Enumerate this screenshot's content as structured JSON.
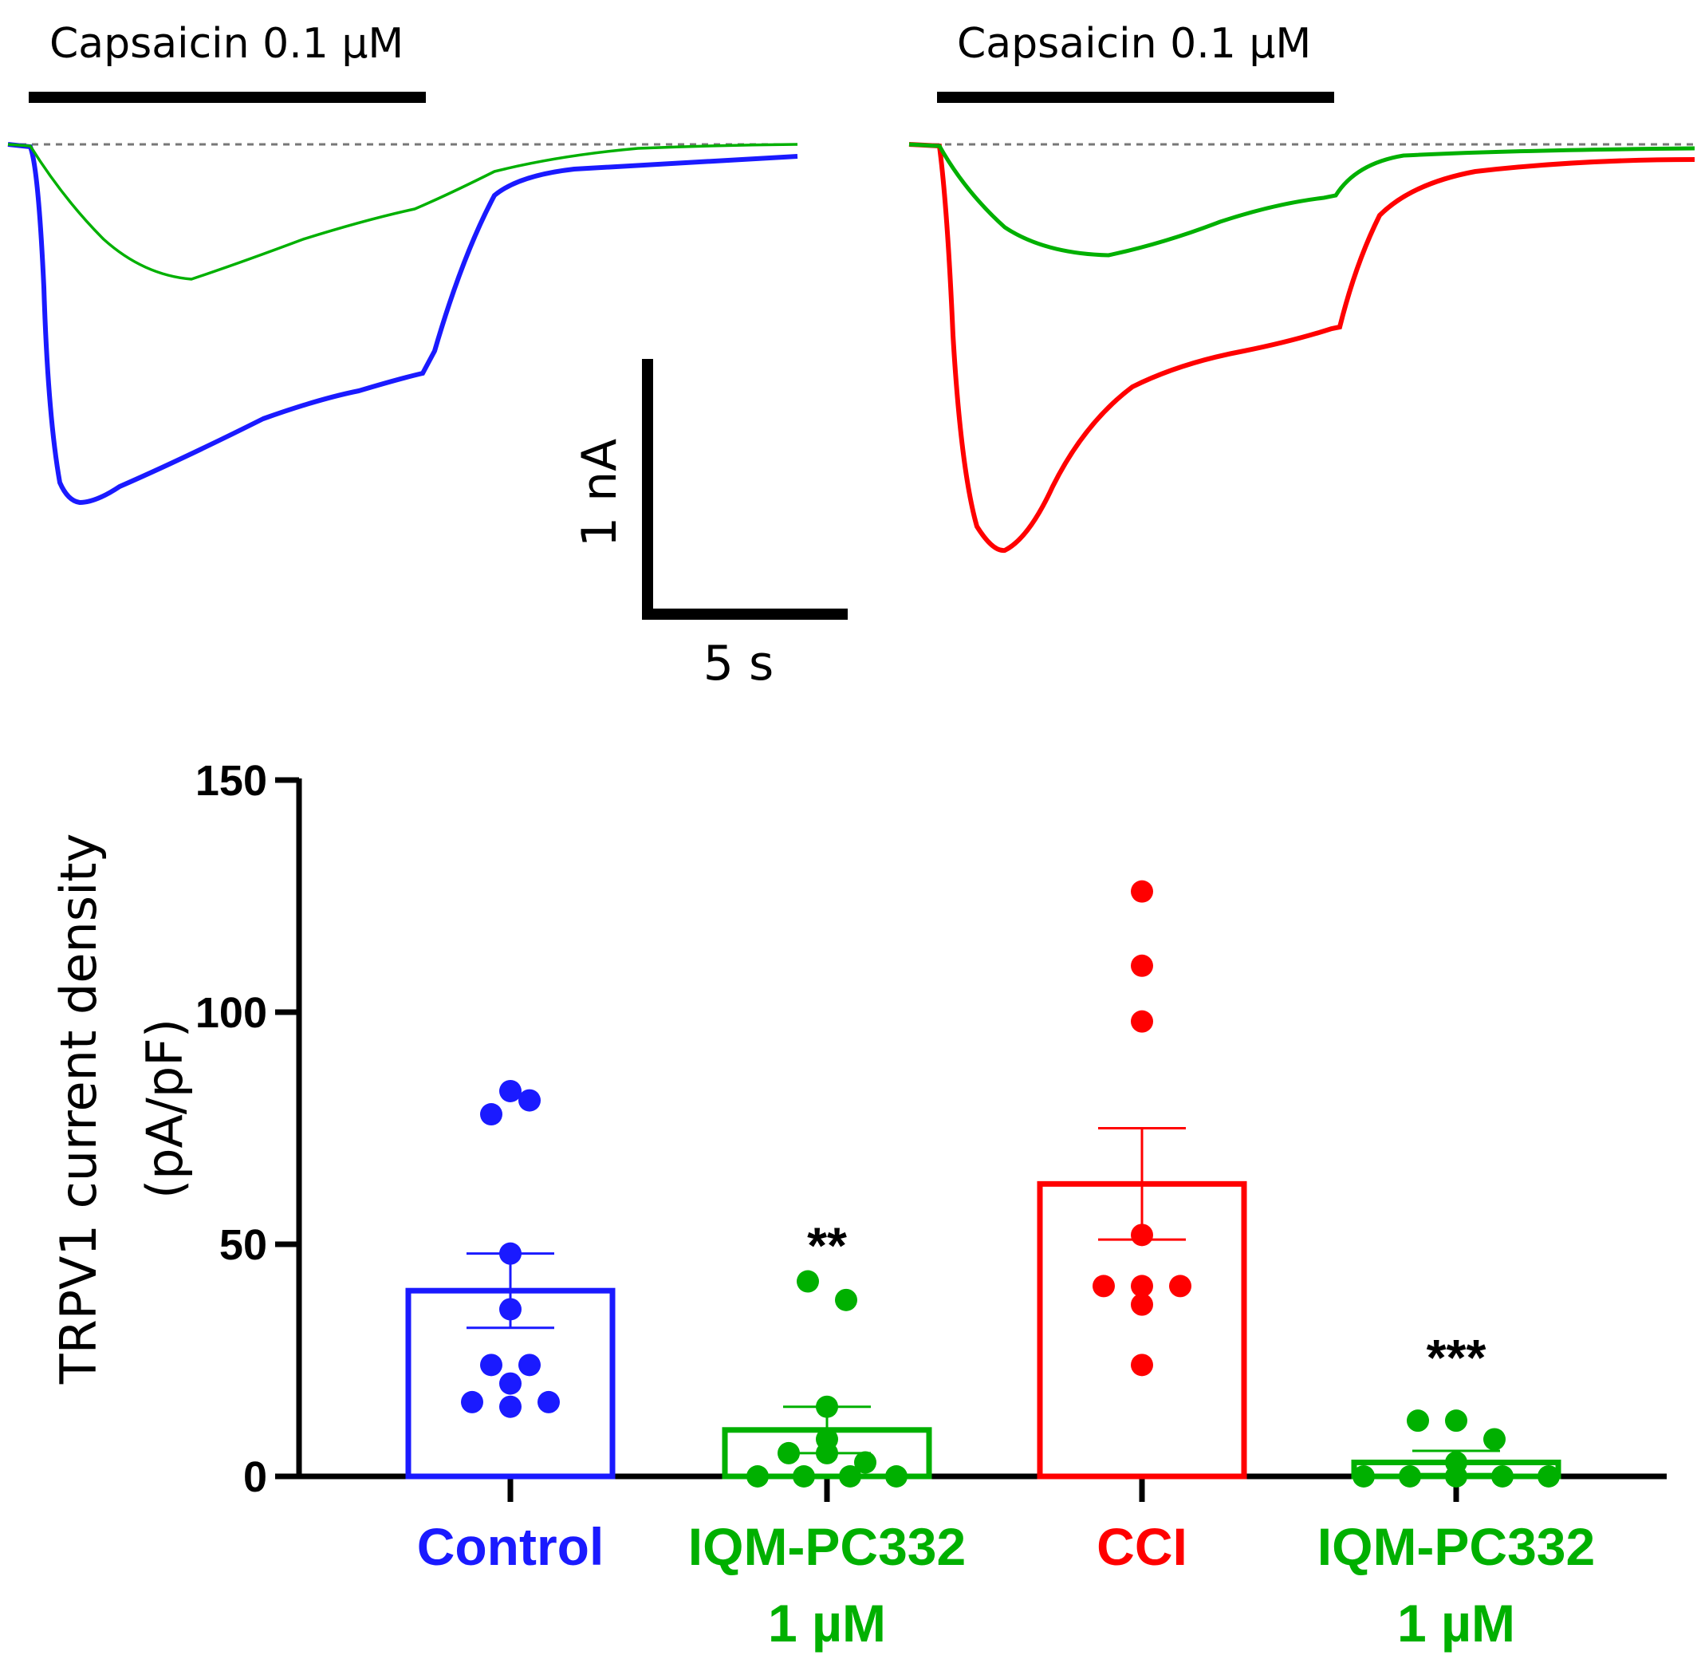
{
  "colors": {
    "control": "#1a1aff",
    "drug": "#00b000",
    "cci": "#ff0000",
    "axis": "#000000",
    "baseline": "#777777"
  },
  "traces": {
    "left": {
      "stimulus_label": "Capsaicin 0.1 µM",
      "series": [
        "control",
        "drug"
      ]
    },
    "right": {
      "stimulus_label": "Capsaicin 0.1 µM",
      "series": [
        "cci",
        "drug"
      ]
    }
  },
  "scale_bar": {
    "y_label": "1 nA",
    "x_label": "5 s"
  },
  "chart_data": {
    "type": "bar",
    "ylabel_line1": "TRPV1 current density",
    "ylabel_line2": "(pA/pF)",
    "ylim": [
      0,
      150
    ],
    "yticks": [
      "0",
      "50",
      "100",
      "150"
    ],
    "categories": [
      {
        "line1": "Control",
        "line2": "",
        "color_key": "control",
        "value": 40,
        "sem": 8,
        "sig": "",
        "points": [
          83,
          78,
          81,
          48,
          36,
          24,
          24,
          20,
          16,
          15,
          16
        ]
      },
      {
        "line1": "IQM-PC332",
        "line2": "1 µM",
        "color_key": "drug",
        "value": 10,
        "sem": 5,
        "sig": "**",
        "points": [
          42,
          38,
          15,
          8,
          5,
          5,
          3,
          0,
          0,
          0,
          0
        ]
      },
      {
        "line1": "CCI",
        "line2": "",
        "color_key": "cci",
        "value": 63,
        "sem": 12,
        "sig": "",
        "points": [
          126,
          110,
          98,
          52,
          41,
          41,
          41,
          37,
          24
        ]
      },
      {
        "line1": "IQM-PC332",
        "line2": "1 µM",
        "color_key": "drug",
        "value": 3,
        "sem": 2.5,
        "sig": "***",
        "points": [
          12,
          12,
          8,
          3,
          0,
          0,
          0,
          0,
          0
        ]
      }
    ]
  }
}
